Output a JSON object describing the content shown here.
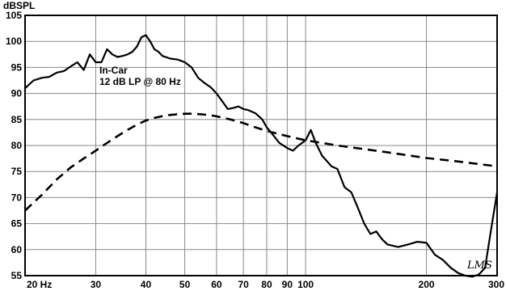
{
  "chart_data": {
    "type": "line",
    "title": "",
    "ylabel": "dBSPL",
    "xlabel": "",
    "x_scale": "log",
    "xlim": [
      20,
      300
    ],
    "ylim": [
      55,
      105
    ],
    "grid": true,
    "x_tick_labels": [
      {
        "value": 20,
        "label": "20 Hz"
      },
      {
        "value": 30,
        "label": "30"
      },
      {
        "value": 40,
        "label": "40"
      },
      {
        "value": 50,
        "label": "50"
      },
      {
        "value": 60,
        "label": "60"
      },
      {
        "value": 70,
        "label": "70"
      },
      {
        "value": 80,
        "label": "80"
      },
      {
        "value": 90,
        "label": "90"
      },
      {
        "value": 100,
        "label": "100"
      },
      {
        "value": 200,
        "label": "200"
      },
      {
        "value": 300,
        "label": "300"
      }
    ],
    "y_ticks": [
      105,
      100,
      95,
      90,
      85,
      80,
      75,
      70,
      65,
      60,
      55
    ],
    "annotation": [
      "In-Car",
      "12 dB LP @ 80 Hz"
    ],
    "signature": "LMS",
    "series": [
      {
        "style": "solid",
        "x": [
          20,
          21,
          22,
          23,
          24,
          25,
          26,
          27,
          28,
          29,
          30,
          31,
          32,
          33,
          34,
          35,
          36,
          37,
          38,
          39,
          40,
          41,
          42,
          43,
          44,
          46,
          48,
          50,
          52,
          54,
          56,
          58,
          60,
          62,
          64,
          66,
          68,
          70,
          72,
          75,
          78,
          80,
          83,
          86,
          90,
          93,
          96,
          100,
          103,
          106,
          110,
          113,
          116,
          120,
          125,
          130,
          135,
          140,
          145,
          150,
          155,
          160,
          170,
          180,
          190,
          200,
          210,
          220,
          230,
          240,
          250,
          260,
          270,
          280,
          290,
          300
        ],
        "y": [
          91,
          92.5,
          93,
          93.2,
          94,
          94.3,
          95.2,
          96,
          94.5,
          97.5,
          96,
          96,
          98.5,
          97.5,
          97,
          97.2,
          97.5,
          98,
          99,
          100.8,
          101.2,
          100,
          98.5,
          98,
          97.2,
          96.7,
          96.5,
          96,
          95,
          93,
          92,
          91.2,
          90,
          88.5,
          87,
          87.2,
          87.5,
          87,
          86.8,
          86.2,
          85,
          83.5,
          82,
          80.5,
          79.5,
          79,
          80,
          81,
          83,
          80.5,
          78,
          77,
          76,
          75.5,
          72,
          71,
          68,
          65,
          63,
          63.5,
          62,
          61,
          60.5,
          61,
          61.5,
          61.3,
          59,
          58,
          56.5,
          55.5,
          55,
          54.8,
          55.2,
          56.5,
          64,
          71
        ]
      },
      {
        "style": "dashed",
        "x": [
          20,
          22,
          24,
          26,
          28,
          30,
          32,
          34,
          36,
          38,
          40,
          42,
          45,
          48,
          50,
          52,
          55,
          58,
          60,
          65,
          70,
          75,
          80,
          90,
          100,
          110,
          120,
          140,
          160,
          180,
          200,
          230,
          260,
          300
        ],
        "y": [
          67.5,
          70.5,
          73.5,
          75.8,
          77.5,
          79,
          80.5,
          81.8,
          83,
          84,
          84.8,
          85.3,
          85.8,
          86,
          86.1,
          86.1,
          86,
          85.8,
          85.6,
          85,
          84.3,
          83.5,
          82.8,
          81.8,
          81,
          80.5,
          80,
          79.3,
          78.7,
          78.1,
          77.6,
          77.1,
          76.6,
          76
        ]
      }
    ]
  }
}
